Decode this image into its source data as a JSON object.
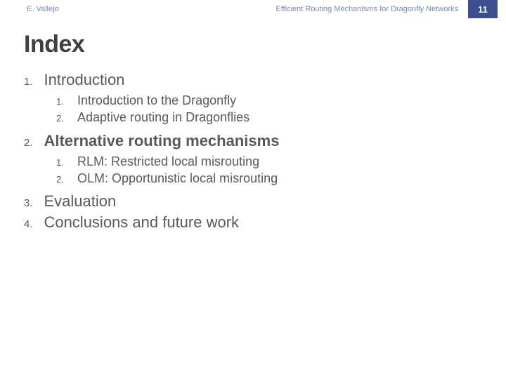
{
  "header": {
    "author": "E. Vallejo",
    "title": "Efficient Routing Mechanisms for Dragonfly Networks",
    "page_number": "11",
    "pagebox_bg": "#3d4e8f",
    "header_text_color": "#7a86b4"
  },
  "slide_title": "Index",
  "outline": [
    {
      "label": "Introduction",
      "bold": false,
      "children": [
        "Introduction to the Dragonfly",
        "Adaptive routing in Dragonflies"
      ]
    },
    {
      "label": "Alternative routing mechanisms",
      "bold": true,
      "children": [
        "RLM: Restricted local misrouting",
        "OLM: Opportunistic local misrouting"
      ]
    },
    {
      "label": "Evaluation",
      "bold": false,
      "children": []
    },
    {
      "label": "Conclusions and future work",
      "bold": false,
      "children": []
    }
  ],
  "colors": {
    "title_color": "#404040",
    "body_color": "#595959",
    "background": "#ffffff"
  }
}
